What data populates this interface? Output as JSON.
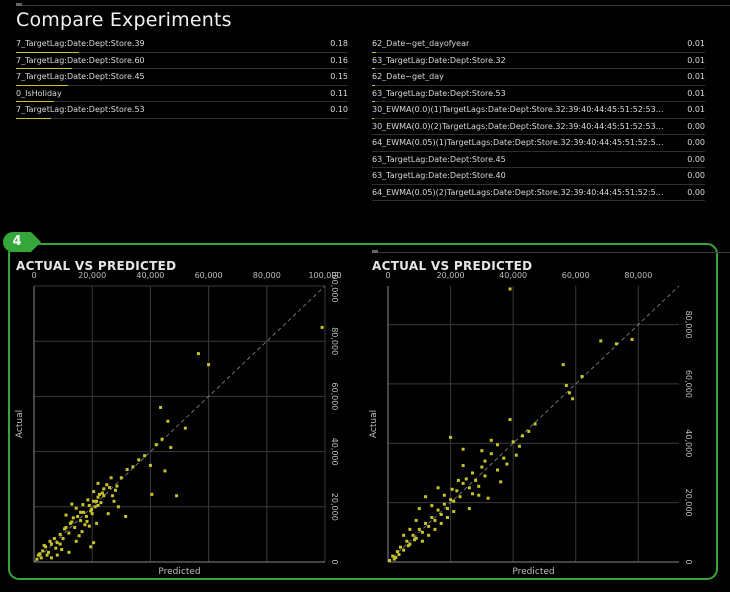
{
  "page": {
    "title": "Compare Experiments"
  },
  "colors": {
    "accent": "#35a63a",
    "bar": "#c9c32a",
    "point": "#c9c32a"
  },
  "left_table": [
    {
      "name": "7_TargetLag:Date:Dept:Store.39",
      "value": "0.18",
      "bar": 1.0
    },
    {
      "name": "7_TargetLag:Date:Dept:Store.60",
      "value": "0.16",
      "bar": 0.89
    },
    {
      "name": "7_TargetLag:Date:Dept:Store.45",
      "value": "0.15",
      "bar": 0.83
    },
    {
      "name": "0_IsHoliday",
      "value": "0.11",
      "bar": 0.61
    },
    {
      "name": "7_TargetLag:Date:Dept:Store.53",
      "value": "0.10",
      "bar": 0.56
    }
  ],
  "right_table": [
    {
      "name": "62_Date~get_dayofyear",
      "value": "0.01",
      "bar": 0.06
    },
    {
      "name": "63_TargetLag:Date:Dept:Store.32",
      "value": "0.01",
      "bar": 0.05
    },
    {
      "name": "62_Date~get_day",
      "value": "0.01",
      "bar": 0.04
    },
    {
      "name": "63_TargetLag:Date:Dept:Store.53",
      "value": "0.01",
      "bar": 0.04
    },
    {
      "name": "30_EWMA(0.0)(1)TargetLags:Date:Dept:Store.32:39:40:44:45:51:52:53:6...",
      "value": "0.01",
      "bar": 0.03
    },
    {
      "name": "30_EWMA(0.0)(2)TargetLags:Date:Dept:Store.32:39:40:44:45:51:52:53:6...",
      "value": "0.00",
      "bar": 0.0
    },
    {
      "name": "64_EWMA(0.05)(1)TargetLags:Date:Dept:Store.32:39:40:44:45:51:52:53:...",
      "value": "0.00",
      "bar": 0.0
    },
    {
      "name": "63_TargetLag:Date:Dept:Store.45",
      "value": "0.00",
      "bar": 0.0
    },
    {
      "name": "63_TargetLag:Date:Dept:Store.40",
      "value": "0.00",
      "bar": 0.0
    },
    {
      "name": "64_EWMA(0.05)(2)TargetLags:Date:Dept:Store.32:39:40:44:45:51:52:53:...",
      "value": "0.00",
      "bar": 0.0
    }
  ],
  "badge": {
    "number": "4"
  },
  "chart_data": [
    {
      "type": "scatter",
      "title": "ACTUAL VS PREDICTED",
      "xlabel": "Predicted",
      "ylabel": "Actual",
      "xlim": [
        0,
        100000
      ],
      "ylim": [
        0,
        100000
      ],
      "xticks": [
        0,
        20000,
        40000,
        60000,
        80000,
        100000
      ],
      "xtick_labels": [
        "0",
        "20,000",
        "40,000",
        "60,000",
        "80,000",
        "100,000"
      ],
      "yticks": [
        0,
        20000,
        40000,
        60000,
        80000,
        100000
      ],
      "ytick_labels": [
        "0",
        "20,000",
        "40,000",
        "60,000",
        "80,000",
        "100,000"
      ],
      "grid": true,
      "diagonal": true,
      "points": [
        [
          1000,
          1000
        ],
        [
          1500,
          2500
        ],
        [
          2500,
          1500
        ],
        [
          3000,
          4000
        ],
        [
          4000,
          5500
        ],
        [
          5000,
          3500
        ],
        [
          3500,
          6000
        ],
        [
          6000,
          6500
        ],
        [
          7000,
          8500
        ],
        [
          8000,
          7000
        ],
        [
          9000,
          10000
        ],
        [
          10000,
          8500
        ],
        [
          11000,
          12500
        ],
        [
          12000,
          10500
        ],
        [
          13000,
          14500
        ],
        [
          14000,
          12500
        ],
        [
          15000,
          16500
        ],
        [
          16000,
          15000
        ],
        [
          17000,
          18000
        ],
        [
          18000,
          16500
        ],
        [
          19000,
          20500
        ],
        [
          19500,
          18500
        ],
        [
          20000,
          17500
        ],
        [
          20500,
          22000
        ],
        [
          21000,
          20000
        ],
        [
          22000,
          23500
        ],
        [
          23000,
          21500
        ],
        [
          17500,
          13500
        ],
        [
          16500,
          11000
        ],
        [
          15500,
          9500
        ],
        [
          14500,
          7500
        ],
        [
          18500,
          22500
        ],
        [
          20500,
          25500
        ],
        [
          22000,
          28500
        ],
        [
          24000,
          26500
        ],
        [
          25000,
          28000
        ],
        [
          26500,
          30500
        ],
        [
          27000,
          24000
        ],
        [
          28500,
          27500
        ],
        [
          30000,
          30500
        ],
        [
          32000,
          33500
        ],
        [
          34000,
          34500
        ],
        [
          36000,
          37000
        ],
        [
          38000,
          38500
        ],
        [
          40000,
          35000
        ],
        [
          42000,
          42500
        ],
        [
          44000,
          44500
        ],
        [
          45000,
          33000
        ],
        [
          47000,
          41500
        ],
        [
          43500,
          56000
        ],
        [
          46000,
          51000
        ],
        [
          52000,
          48500
        ],
        [
          56500,
          75500
        ],
        [
          60000,
          71500
        ],
        [
          22000,
          20500
        ],
        [
          21500,
          14000
        ],
        [
          20500,
          7000
        ],
        [
          19500,
          5500
        ],
        [
          12000,
          3500
        ],
        [
          9500,
          4500
        ],
        [
          8000,
          2500
        ],
        [
          6000,
          1500
        ],
        [
          11000,
          17000
        ],
        [
          13000,
          21000
        ],
        [
          14500,
          19500
        ],
        [
          23500,
          25000
        ],
        [
          25500,
          17500
        ],
        [
          27500,
          22000
        ],
        [
          29000,
          20000
        ],
        [
          31500,
          16500
        ],
        [
          40500,
          24500
        ],
        [
          49000,
          24000
        ],
        [
          10500,
          12000
        ],
        [
          12500,
          14000
        ],
        [
          13500,
          16000
        ],
        [
          16000,
          18000
        ],
        [
          16800,
          20800
        ],
        [
          18200,
          14700
        ],
        [
          19000,
          13000
        ],
        [
          19800,
          19000
        ],
        [
          21500,
          22000
        ],
        [
          22500,
          24500
        ],
        [
          24000,
          24000
        ],
        [
          26000,
          27000
        ],
        [
          28000,
          26000
        ],
        [
          2000,
          3000
        ],
        [
          4500,
          2500
        ],
        [
          5500,
          7500
        ],
        [
          7500,
          5000
        ],
        [
          9000,
          6500
        ],
        [
          99000,
          85000
        ]
      ]
    },
    {
      "type": "scatter",
      "title": "ACTUAL VS PREDICTED",
      "xlabel": "Predicted",
      "ylabel": "Actual",
      "xlim": [
        0,
        93000
      ],
      "ylim": [
        0,
        93000
      ],
      "xticks": [
        0,
        20000,
        40000,
        60000,
        80000
      ],
      "xtick_labels": [
        "0",
        "20,000",
        "40,000",
        "60,000",
        "80,000"
      ],
      "yticks": [
        0,
        20000,
        40000,
        60000,
        80000
      ],
      "ytick_labels": [
        "0",
        "20,000",
        "40,000",
        "60,000",
        "80,000"
      ],
      "grid": true,
      "diagonal": true,
      "points": [
        [
          500,
          500
        ],
        [
          1500,
          2000
        ],
        [
          2500,
          1500
        ],
        [
          3000,
          3500
        ],
        [
          4000,
          5000
        ],
        [
          5000,
          4000
        ],
        [
          6000,
          7000
        ],
        [
          7000,
          6000
        ],
        [
          8000,
          9000
        ],
        [
          9000,
          8000
        ],
        [
          10000,
          11000
        ],
        [
          11000,
          10000
        ],
        [
          12000,
          13000
        ],
        [
          13000,
          12000
        ],
        [
          14000,
          15000
        ],
        [
          15000,
          14000
        ],
        [
          16000,
          17500
        ],
        [
          17000,
          16000
        ],
        [
          18000,
          19500
        ],
        [
          19000,
          18000
        ],
        [
          20000,
          21000
        ],
        [
          21000,
          20500
        ],
        [
          22000,
          24000
        ],
        [
          23000,
          22000
        ],
        [
          24000,
          26500
        ],
        [
          25000,
          28000
        ],
        [
          26000,
          25000
        ],
        [
          27000,
          30000
        ],
        [
          28000,
          27500
        ],
        [
          30000,
          32000
        ],
        [
          31000,
          29000
        ],
        [
          33000,
          36500
        ],
        [
          35000,
          39500
        ],
        [
          37000,
          35000
        ],
        [
          40000,
          40500
        ],
        [
          43000,
          42500
        ],
        [
          45000,
          44000
        ],
        [
          47000,
          46500
        ],
        [
          24000,
          38000
        ],
        [
          30000,
          37500
        ],
        [
          33000,
          41000
        ],
        [
          39000,
          48000
        ],
        [
          42000,
          39000
        ],
        [
          56000,
          66500
        ],
        [
          57000,
          59500
        ],
        [
          58000,
          57000
        ],
        [
          59000,
          55000
        ],
        [
          62000,
          62500
        ],
        [
          68000,
          74500
        ],
        [
          73000,
          73500
        ],
        [
          78000,
          75000
        ],
        [
          39000,
          92000
        ],
        [
          20000,
          42000
        ],
        [
          24000,
          32500
        ],
        [
          26000,
          18000
        ],
        [
          29000,
          22500
        ],
        [
          32000,
          21500
        ],
        [
          10000,
          18000
        ],
        [
          12000,
          22000
        ],
        [
          14000,
          19000
        ],
        [
          16000,
          25000
        ],
        [
          5000,
          9000
        ],
        [
          7000,
          11000
        ],
        [
          9000,
          14000
        ],
        [
          11000,
          7000
        ],
        [
          13000,
          9000
        ],
        [
          15000,
          11000
        ],
        [
          17000,
          13000
        ],
        [
          19000,
          15000
        ],
        [
          21000,
          17000
        ],
        [
          2000,
          1000
        ],
        [
          3500,
          2500
        ],
        [
          6500,
          5500
        ],
        [
          8500,
          7500
        ],
        [
          18000,
          22500
        ],
        [
          20500,
          24500
        ],
        [
          22500,
          27500
        ],
        [
          35000,
          31000
        ],
        [
          36000,
          27000
        ],
        [
          38000,
          33000
        ],
        [
          41000,
          36000
        ],
        [
          27000,
          23000
        ],
        [
          29000,
          25500
        ],
        [
          31000,
          34000
        ]
      ]
    }
  ]
}
